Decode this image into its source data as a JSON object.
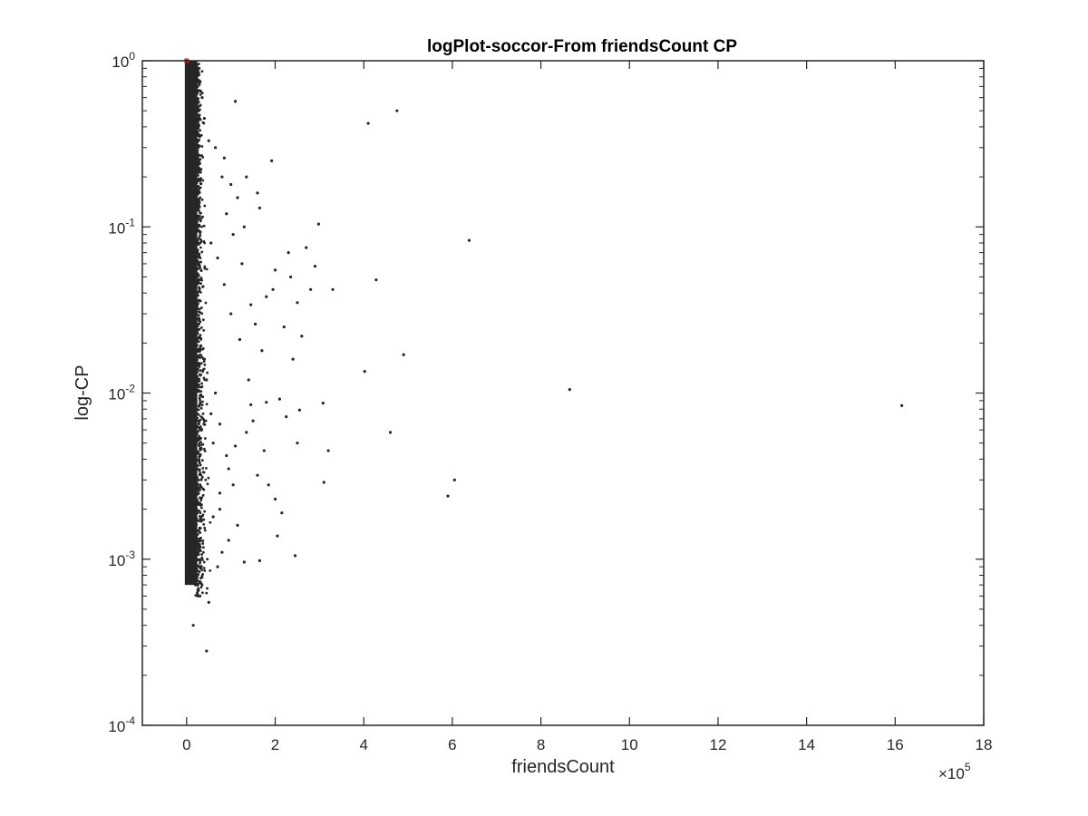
{
  "chart_data": {
    "type": "scatter",
    "title": "logPlot-soccor-From friendsCount CP",
    "xlabel": "friendsCount",
    "ylabel": "log-CP",
    "x_multiplier_label": "×10",
    "x_multiplier_exp": "5",
    "x_scale": 100000,
    "xlim": [
      -100000,
      1800000
    ],
    "ylim": [
      0.0001,
      1
    ],
    "y_scale": "log",
    "x_ticks": [
      0,
      200000,
      400000,
      600000,
      800000,
      1000000,
      1200000,
      1400000,
      1600000,
      1800000
    ],
    "x_tick_labels": [
      "0",
      "2",
      "4",
      "6",
      "8",
      "10",
      "12",
      "14",
      "16",
      "18"
    ],
    "y_ticks": [
      0.0001,
      0.001,
      0.01,
      0.1,
      1
    ],
    "y_tick_base": "10",
    "y_tick_exps": [
      "-4",
      "-3",
      "-2",
      "-1",
      "0"
    ],
    "marker_color": "#262626",
    "highlight_color": "#d62728",
    "highlight_point": {
      "x": 0,
      "y": 1
    },
    "dense_cluster": {
      "x_range": [
        0,
        20000
      ],
      "y_range": [
        0.0007,
        1
      ]
    },
    "series": [
      {
        "name": "friendsCount CP",
        "points": [
          [
            110000,
            0.57
          ],
          [
            192000,
            0.25
          ],
          [
            135000,
            0.2
          ],
          [
            160000,
            0.16
          ],
          [
            165000,
            0.13
          ],
          [
            410000,
            0.42
          ],
          [
            475000,
            0.5
          ],
          [
            298000,
            0.104
          ],
          [
            638000,
            0.083
          ],
          [
            290000,
            0.058
          ],
          [
            235000,
            0.05
          ],
          [
            428000,
            0.048
          ],
          [
            195000,
            0.042
          ],
          [
            280000,
            0.042
          ],
          [
            330000,
            0.042
          ],
          [
            490000,
            0.017
          ],
          [
            402000,
            0.0135
          ],
          [
            865000,
            0.0105
          ],
          [
            1615000,
            0.0084
          ],
          [
            308000,
            0.0087
          ],
          [
            255000,
            0.0079
          ],
          [
            460000,
            0.0058
          ],
          [
            250000,
            0.005
          ],
          [
            320000,
            0.0045
          ],
          [
            175000,
            0.0045
          ],
          [
            605000,
            0.003
          ],
          [
            590000,
            0.0024
          ],
          [
            310000,
            0.0029
          ],
          [
            245000,
            0.00105
          ],
          [
            205000,
            0.00138
          ],
          [
            165000,
            0.00098
          ],
          [
            130000,
            0.00096
          ],
          [
            110000,
            0.0048
          ],
          [
            95000,
            0.0035
          ],
          [
            75000,
            0.0025
          ],
          [
            60000,
            0.0018
          ],
          [
            50000,
            0.00055
          ],
          [
            45000,
            0.00028
          ],
          [
            25000,
            0.0012
          ],
          [
            30000,
            0.0006
          ],
          [
            150000,
            0.0068
          ],
          [
            140000,
            0.012
          ],
          [
            120000,
            0.021
          ],
          [
            100000,
            0.03
          ],
          [
            85000,
            0.045
          ],
          [
            70000,
            0.065
          ],
          [
            55000,
            0.08
          ],
          [
            180000,
            0.0088
          ],
          [
            210000,
            0.0092
          ],
          [
            225000,
            0.0072
          ],
          [
            170000,
            0.018
          ],
          [
            155000,
            0.026
          ],
          [
            145000,
            0.034
          ],
          [
            125000,
            0.06
          ],
          [
            105000,
            0.09
          ],
          [
            90000,
            0.12
          ],
          [
            80000,
            0.2
          ],
          [
            65000,
            0.3
          ],
          [
            50000,
            0.33
          ],
          [
            40000,
            0.45
          ],
          [
            35000,
            0.6
          ],
          [
            60000,
            0.005
          ],
          [
            55000,
            0.0075
          ],
          [
            45000,
            0.012
          ],
          [
            40000,
            0.016
          ],
          [
            200000,
            0.0023
          ],
          [
            215000,
            0.0019
          ],
          [
            185000,
            0.0028
          ],
          [
            160000,
            0.0032
          ],
          [
            115000,
            0.0016
          ],
          [
            95000,
            0.0013
          ],
          [
            80000,
            0.0011
          ],
          [
            70000,
            0.0009
          ],
          [
            75000,
            0.0065
          ],
          [
            65000,
            0.01
          ],
          [
            220000,
            0.025
          ],
          [
            240000,
            0.016
          ],
          [
            260000,
            0.022
          ],
          [
            180000,
            0.038
          ],
          [
            200000,
            0.055
          ],
          [
            230000,
            0.07
          ],
          [
            270000,
            0.075
          ],
          [
            250000,
            0.035
          ],
          [
            130000,
            0.1
          ],
          [
            115000,
            0.15
          ],
          [
            100000,
            0.18
          ],
          [
            85000,
            0.26
          ],
          [
            145000,
            0.0085
          ],
          [
            135000,
            0.0058
          ],
          [
            90000,
            0.0042
          ],
          [
            105000,
            0.0028
          ],
          [
            75000,
            0.002
          ],
          [
            30000,
            0.0009
          ],
          [
            20000,
            0.0007
          ],
          [
            15000,
            0.0004
          ]
        ]
      }
    ]
  }
}
